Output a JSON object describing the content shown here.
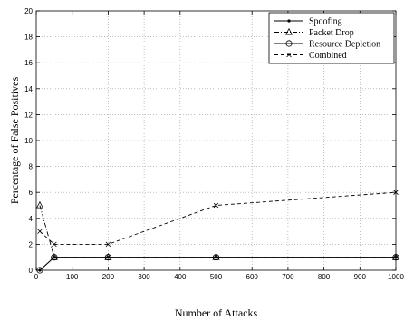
{
  "chart_data": {
    "type": "line",
    "xlabel": "Number of Attacks",
    "ylabel": "Percentage of False Positives",
    "xlim": [
      0,
      1000
    ],
    "ylim": [
      0,
      20
    ],
    "xticks": [
      0,
      100,
      200,
      300,
      400,
      500,
      600,
      700,
      800,
      900,
      1000
    ],
    "yticks": [
      0,
      2,
      4,
      6,
      8,
      10,
      12,
      14,
      16,
      18,
      20
    ],
    "grid": true,
    "legend_position": "top-right",
    "series": [
      {
        "name": "Spoofing",
        "marker": "dot",
        "dash": "solid",
        "x": [
          10,
          50,
          200,
          500,
          1000
        ],
        "y": [
          0,
          1,
          1,
          1,
          1
        ]
      },
      {
        "name": "Packet Drop",
        "marker": "triangle",
        "dash": "dashdot",
        "x": [
          10,
          50,
          200,
          500,
          1000
        ],
        "y": [
          5,
          1,
          1,
          1,
          1
        ]
      },
      {
        "name": "Resource Depletion",
        "marker": "circle",
        "dash": "solid",
        "x": [
          10,
          50,
          200,
          500,
          1000
        ],
        "y": [
          0,
          1,
          1,
          1,
          1
        ]
      },
      {
        "name": "Combined",
        "marker": "x",
        "dash": "dashed",
        "x": [
          10,
          50,
          200,
          500,
          1000
        ],
        "y": [
          3,
          2,
          2,
          5,
          6
        ]
      }
    ]
  }
}
